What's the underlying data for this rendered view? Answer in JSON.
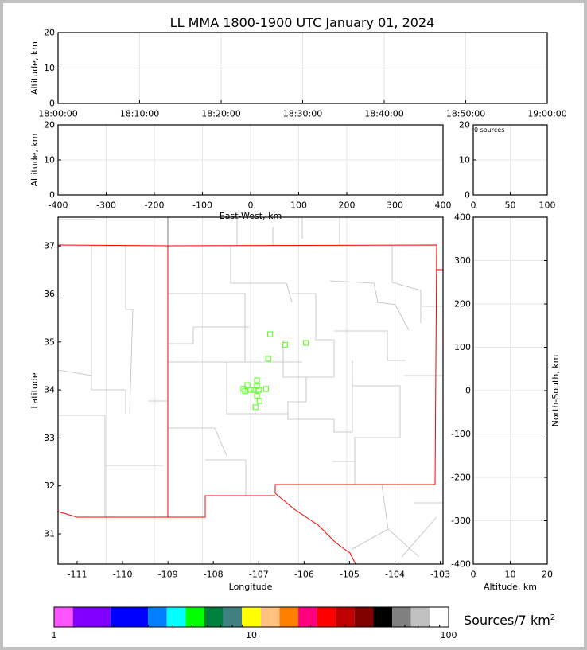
{
  "title": "LL MMA 1800-1900 UTC January 01, 2024",
  "chart_data": [
    {
      "name": "altitude-time",
      "type": "scatter",
      "ylabel": "Altitude, km",
      "ylim": [
        0,
        20
      ],
      "yticks": [
        "0",
        "10",
        "20"
      ],
      "xticks": [
        "18:00:00",
        "18:10:00",
        "18:20:00",
        "18:30:00",
        "18:40:00",
        "18:50:00",
        "19:00:00"
      ],
      "points": []
    },
    {
      "name": "altitude-eastwest",
      "type": "scatter",
      "xlabel": "East-West, km",
      "ylabel": "Altitude, km",
      "xlim": [
        -400,
        400
      ],
      "ylim": [
        0,
        20
      ],
      "xticks": [
        "-400",
        "-300",
        "-200",
        "-100",
        "0",
        "100",
        "200",
        "300",
        "400"
      ],
      "yticks": [
        "0",
        "10",
        "20"
      ],
      "points": []
    },
    {
      "name": "altitude-histogram",
      "type": "bar",
      "annotation": "0 sources",
      "xlim": [
        0,
        100
      ],
      "ylim": [
        0,
        20
      ],
      "xticks": [
        "0",
        "50",
        "100"
      ],
      "yticks": [
        "0",
        "10",
        "20"
      ],
      "values": []
    },
    {
      "name": "plan-view",
      "type": "scatter",
      "xlabel": "Longitude",
      "ylabel": "Latitude",
      "xlim": [
        -111.42,
        -102.94
      ],
      "ylim": [
        30.37,
        37.6
      ],
      "xticks": [
        "-111",
        "-110",
        "-109",
        "-108",
        "-107",
        "-106",
        "-105",
        "-104",
        "-103"
      ],
      "yticks": [
        "31",
        "32",
        "33",
        "34",
        "35",
        "36",
        "37"
      ],
      "marker_color": "#66ff33",
      "boundary_color": "#ff0000",
      "points": [
        [
          -106.75,
          35.16
        ],
        [
          -106.42,
          34.94
        ],
        [
          -105.96,
          34.98
        ],
        [
          -106.79,
          34.65
        ],
        [
          -107.04,
          34.2
        ],
        [
          -107.04,
          34.08
        ],
        [
          -107.25,
          34.1
        ],
        [
          -107.34,
          34.02
        ],
        [
          -107.3,
          33.98
        ],
        [
          -107.18,
          34.0
        ],
        [
          -107.11,
          34.0
        ],
        [
          -107.0,
          34.0
        ],
        [
          -106.84,
          34.02
        ],
        [
          -107.04,
          33.88
        ],
        [
          -106.98,
          33.77
        ],
        [
          -107.07,
          33.64
        ]
      ]
    },
    {
      "name": "northsouth-altitude",
      "type": "scatter",
      "xlabel": "Altitude, km",
      "ylabel": "North-South, km",
      "xlim": [
        0,
        20
      ],
      "ylim": [
        -400,
        400
      ],
      "xticks": [
        "0",
        "10",
        "20"
      ],
      "yticks": [
        "-400",
        "-300",
        "-200",
        "-100",
        "0",
        "100",
        "200",
        "300",
        "400"
      ],
      "points": []
    }
  ],
  "colorbar": {
    "label": "Sources/7 km",
    "label_sup": "2",
    "ticks": [
      "1",
      "10",
      "100"
    ],
    "scale": "log",
    "colors": [
      "#ff55ff",
      "#8000ff",
      "#0000ff",
      "#0080ff",
      "#00ffff",
      "#00ff00",
      "#008040",
      "#408080",
      "#ffff00",
      "#ffc080",
      "#ff8000",
      "#ff0080",
      "#ff0000",
      "#c00000",
      "#800000",
      "#000000",
      "#808080",
      "#c0c0c0",
      "#ffffff"
    ]
  }
}
